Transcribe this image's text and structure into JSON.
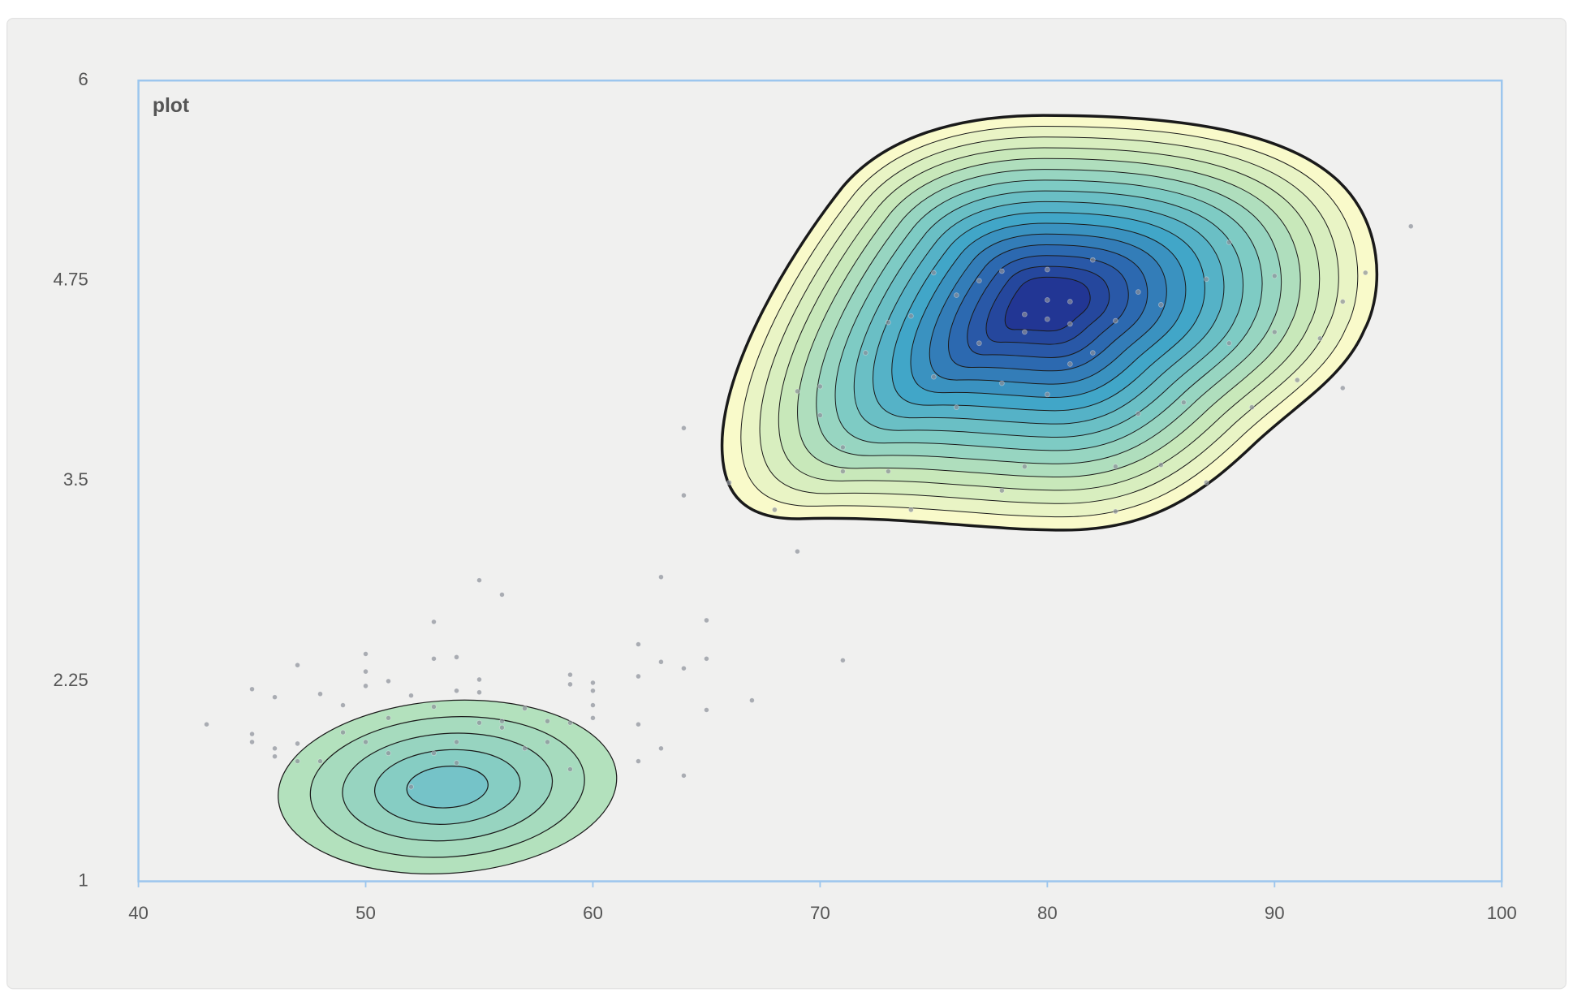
{
  "chart_data": {
    "type": "contour",
    "title": "plot",
    "xlim": [
      40,
      100
    ],
    "ylim": [
      1,
      6
    ],
    "xticks": [
      40,
      50,
      60,
      70,
      80,
      90,
      100
    ],
    "yticks": [
      1,
      2.25,
      3.5,
      4.75,
      6
    ],
    "point_color": "#8a8f98",
    "x": [
      43,
      45,
      45,
      45,
      46,
      46,
      46,
      47,
      47,
      47,
      48,
      48,
      49,
      49,
      50,
      50,
      50,
      50,
      51,
      51,
      51,
      52,
      52,
      53,
      53,
      53,
      53,
      54,
      54,
      54,
      54,
      55,
      55,
      55,
      55,
      56,
      56,
      56,
      57,
      57,
      58,
      58,
      59,
      59,
      59,
      59,
      60,
      60,
      60,
      60,
      62,
      62,
      62,
      62,
      63,
      63,
      63,
      64,
      64,
      64,
      64,
      65,
      65,
      65,
      66,
      67,
      68,
      69,
      71,
      69,
      70,
      70,
      71,
      71,
      72,
      73,
      73,
      74,
      74,
      75,
      75,
      76,
      76,
      77,
      77,
      78,
      78,
      78,
      79,
      79,
      79,
      80,
      80,
      80,
      80,
      81,
      81,
      81,
      82,
      82,
      83,
      83,
      83,
      84,
      84,
      85,
      85,
      86,
      87,
      87,
      88,
      88,
      89,
      90,
      90,
      91,
      92,
      93,
      93,
      94,
      96
    ],
    "y": [
      1.98,
      2.2,
      1.92,
      1.87,
      2.15,
      1.83,
      1.78,
      2.35,
      1.86,
      1.75,
      2.17,
      1.75,
      2.1,
      1.93,
      2.42,
      2.31,
      2.22,
      1.87,
      2.25,
      2.02,
      1.8,
      2.16,
      1.59,
      2.62,
      2.39,
      2.09,
      1.8,
      2.4,
      2.19,
      1.87,
      1.74,
      2.88,
      2.26,
      2.18,
      1.99,
      2.79,
      2.0,
      1.96,
      2.08,
      1.83,
      2.0,
      1.87,
      2.29,
      2.23,
      1.99,
      1.7,
      2.24,
      2.19,
      2.1,
      2.02,
      2.48,
      2.28,
      1.98,
      1.75,
      2.9,
      2.37,
      1.83,
      3.83,
      3.41,
      2.33,
      1.66,
      2.63,
      2.39,
      2.07,
      3.49,
      2.13,
      3.32,
      3.06,
      2.38,
      4.06,
      4.09,
      3.91,
      3.71,
      3.56,
      4.3,
      4.49,
      3.56,
      4.53,
      3.32,
      4.8,
      4.15,
      4.66,
      3.96,
      4.36,
      4.75,
      4.81,
      3.44,
      4.11,
      4.54,
      4.43,
      3.59,
      4.82,
      4.63,
      4.51,
      4.04,
      4.62,
      4.48,
      4.23,
      4.88,
      4.3,
      4.5,
      3.59,
      3.31,
      4.68,
      3.92,
      4.6,
      3.6,
      3.99,
      4.76,
      3.49,
      4.99,
      4.36,
      3.96,
      4.78,
      4.43,
      4.13,
      4.39,
      4.62,
      4.08,
      4.8,
      5.09
    ]
  }
}
